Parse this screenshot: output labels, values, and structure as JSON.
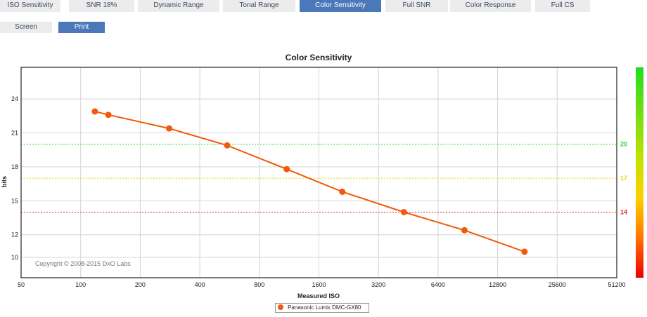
{
  "tabs": [
    {
      "label": "ISO Sensitivity",
      "active": false
    },
    {
      "label": "SNR 18%",
      "active": false
    },
    {
      "label": "Dynamic Range",
      "active": false
    },
    {
      "label": "Tonal Range",
      "active": false
    },
    {
      "label": "Color Sensitivity",
      "active": true
    },
    {
      "label": "Full SNR",
      "active": false
    },
    {
      "label": "Color Response",
      "active": false
    },
    {
      "label": "Full CS",
      "active": false
    }
  ],
  "modes": {
    "screen": "Screen",
    "print": "Print",
    "selected": "Print"
  },
  "copyright": "Copyright © 2008-2015 DxO Labs",
  "legend": {
    "label": "Panasonic Lumix DMC-GX80"
  },
  "colors": {
    "series": "#f05a0a",
    "tab_active": "#4a78b8",
    "green": "#2bd62b",
    "yellow": "#e8d800",
    "red": "#e02020"
  },
  "chart_data": {
    "type": "line",
    "title": "Color Sensitivity",
    "xlabel": "Measured ISO",
    "ylabel": "bits",
    "xscale": "log2",
    "xlim": [
      50,
      51200
    ],
    "ylim": [
      8.2,
      26.8
    ],
    "xticks": [
      50,
      100,
      200,
      400,
      800,
      1600,
      3200,
      6400,
      12800,
      25600,
      51200
    ],
    "yticks": [
      10,
      12,
      15,
      18,
      21,
      24
    ],
    "grid": true,
    "series": [
      {
        "name": "Panasonic Lumix DMC-GX80",
        "x": [
          118,
          138,
          280,
          550,
          1100,
          2100,
          4300,
          8700,
          17500
        ],
        "y": [
          22.9,
          22.6,
          21.4,
          19.9,
          17.8,
          15.8,
          14.0,
          12.4,
          10.5
        ]
      }
    ],
    "reference_lines": [
      {
        "y": 20,
        "label": "20",
        "color": "#2bd62b"
      },
      {
        "y": 17,
        "label": "17",
        "color": "#e8d800"
      },
      {
        "y": 14,
        "label": "14",
        "color": "#e02020"
      }
    ],
    "legend_position": "bottom-center"
  }
}
